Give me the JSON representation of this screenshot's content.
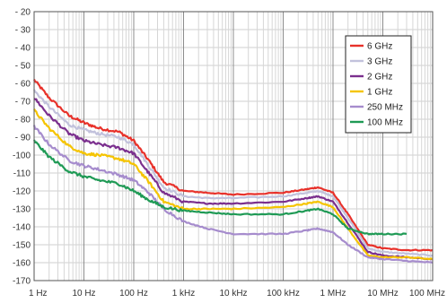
{
  "chart_data": {
    "type": "line",
    "title": "",
    "xlabel": "",
    "ylabel": "",
    "x_scale": "log",
    "xlim": [
      1,
      100000000
    ],
    "ylim": [
      -170,
      -20
    ],
    "grid": true,
    "legend_position": "top-right",
    "x_tick_labels": [
      "1 Hz",
      "10 Hz",
      "100 Hz",
      "1 kHz",
      "10 kHz",
      "100 kHz",
      "1 MHz",
      "10 MHz",
      "100 MHz"
    ],
    "y_tick_labels": [
      "- 20",
      "- 30",
      "- 40",
      "- 50",
      "- 60",
      "- 70",
      "- 80",
      "- 90",
      "-100",
      "-110",
      "-120",
      "-130",
      "-140",
      "-150",
      "-160",
      "-170"
    ],
    "y_ticks": [
      -20,
      -30,
      -40,
      -50,
      -60,
      -70,
      -80,
      -90,
      -100,
      -110,
      -120,
      -130,
      -140,
      -150,
      -160,
      -170
    ],
    "series": [
      {
        "name": "6 GHz",
        "color": "#e8312a",
        "x": [
          1,
          2,
          5,
          10,
          20,
          50,
          100,
          200,
          400,
          1000,
          3000,
          10000,
          100000,
          300000,
          500000,
          1000000,
          2000000,
          5000000,
          10000000,
          30000000,
          100000000
        ],
        "y": [
          -58,
          -68,
          -78,
          -82,
          -85,
          -87,
          -92,
          -103,
          -115,
          -120,
          -121,
          -122,
          -121,
          -119,
          -118,
          -121,
          -133,
          -150,
          -152,
          -153,
          -153
        ]
      },
      {
        "name": "3 GHz",
        "color": "#c2c2dc",
        "x": [
          1,
          2,
          5,
          10,
          20,
          50,
          100,
          200,
          400,
          1000,
          3000,
          10000,
          100000,
          300000,
          500000,
          1000000,
          2000000,
          5000000,
          10000000,
          30000000,
          100000000
        ],
        "y": [
          -64,
          -73,
          -83,
          -86,
          -88,
          -90,
          -94,
          -106,
          -118,
          -123,
          -124,
          -124,
          -123,
          -121,
          -120,
          -123,
          -135,
          -152,
          -154,
          -155,
          -156
        ]
      },
      {
        "name": "2 GHz",
        "color": "#7b2f8e",
        "x": [
          1,
          2,
          5,
          10,
          20,
          50,
          100,
          200,
          400,
          1000,
          3000,
          10000,
          100000,
          300000,
          500000,
          1000000,
          2000000,
          5000000,
          10000000,
          30000000,
          100000000
        ],
        "y": [
          -68,
          -78,
          -88,
          -92,
          -94,
          -96,
          -99,
          -110,
          -121,
          -126,
          -127,
          -127,
          -126,
          -124,
          -123,
          -126,
          -138,
          -154,
          -156,
          -157,
          -158
        ]
      },
      {
        "name": "1 GHz",
        "color": "#f5c400",
        "x": [
          1,
          2,
          5,
          10,
          20,
          50,
          100,
          200,
          400,
          1000,
          3000,
          10000,
          100000,
          300000,
          500000,
          1000000,
          2000000,
          5000000,
          10000000,
          30000000,
          100000000
        ],
        "y": [
          -75,
          -85,
          -95,
          -99,
          -100,
          -102,
          -105,
          -115,
          -126,
          -130,
          -130,
          -130,
          -129,
          -127,
          -126,
          -129,
          -141,
          -156,
          -157,
          -157,
          -158
        ]
      },
      {
        "name": "250 MHz",
        "color": "#a68ccd",
        "x": [
          1,
          2,
          5,
          10,
          20,
          50,
          100,
          200,
          400,
          1000,
          3000,
          10000,
          100000,
          300000,
          500000,
          1000000,
          2000000,
          5000000,
          10000000,
          30000000,
          100000000
        ],
        "y": [
          -84,
          -94,
          -103,
          -106,
          -108,
          -111,
          -114,
          -121,
          -130,
          -137,
          -141,
          -144,
          -144,
          -142,
          -141,
          -143,
          -150,
          -157,
          -158,
          -159,
          -160
        ]
      },
      {
        "name": "100 MHz",
        "color": "#1f9a55",
        "x": [
          1,
          2,
          5,
          10,
          20,
          50,
          100,
          200,
          400,
          1000,
          3000,
          10000,
          100000,
          300000,
          500000,
          1000000,
          2000000,
          5000000,
          10000000,
          30000000
        ],
        "y": [
          -92,
          -101,
          -109,
          -112,
          -114,
          -116,
          -120,
          -125,
          -129,
          -131,
          -132,
          -133,
          -133,
          -131,
          -130,
          -133,
          -141,
          -144,
          -144,
          -144
        ]
      }
    ]
  }
}
